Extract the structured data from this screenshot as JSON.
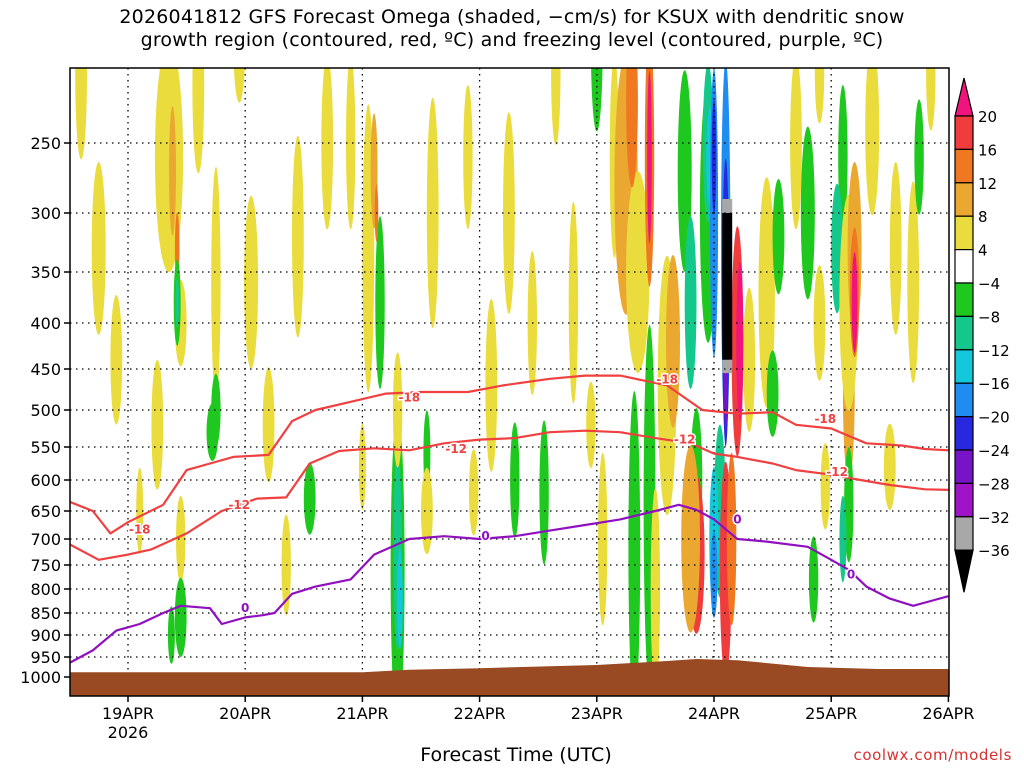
{
  "title_line1": "2026041812 GFS Forecast Omega (shaded, −cm/s) for KSUX with dendritic snow",
  "title_line2": "growth region (contoured, red, ºC) and freezing level (contoured, purple, ºC)",
  "xlabel": "Forecast Time (UTC)",
  "credit": "coolwx.com/models",
  "colors": {
    "red_contour": "#f04040",
    "purple_contour": "#9010c0",
    "ground": "#9a4a22"
  },
  "chart_data": {
    "type": "heatmap",
    "y_ticks": [
      250,
      300,
      350,
      400,
      450,
      500,
      550,
      600,
      650,
      700,
      750,
      800,
      850,
      900,
      950,
      1000
    ],
    "y_tick_labels": [
      "250",
      "300",
      "350",
      "400",
      "450",
      "500",
      "550",
      "600",
      "650",
      "700",
      "750",
      "800",
      "850",
      "900",
      "950",
      "1000"
    ],
    "x_ticks": [
      {
        "day": 1,
        "label": "19APR",
        "sub": "2026"
      },
      {
        "day": 2,
        "label": "20APR"
      },
      {
        "day": 3,
        "label": "21APR"
      },
      {
        "day": 4,
        "label": "22APR"
      },
      {
        "day": 5,
        "label": "23APR"
      },
      {
        "day": 6,
        "label": "24APR"
      },
      {
        "day": 7,
        "label": "25APR"
      },
      {
        "day": 8,
        "label": "26APR"
      }
    ],
    "xlim_days": [
      0.5,
      8.0
    ],
    "colorbar": {
      "labels": [
        "20",
        "16",
        "12",
        "8",
        "4",
        "−4",
        "−8",
        "−12",
        "−16",
        "−20",
        "−24",
        "−28",
        "−32",
        "−36"
      ],
      "colors": [
        "#f0147c",
        "#f03c3c",
        "#f07820",
        "#eaa830",
        "#eadc3c",
        "#ffffff",
        "#1ec81e",
        "#14c88c",
        "#14c8dc",
        "#1e8cf0",
        "#2828e0",
        "#7814c8",
        "#a014c8",
        "#a8a8a8",
        "#000000"
      ]
    },
    "contours": [
      {
        "label": "-18",
        "color": "red",
        "points": [
          [
            0.5,
            635
          ],
          [
            0.7,
            650
          ],
          [
            0.85,
            690
          ],
          [
            1.0,
            670
          ],
          [
            1.3,
            640
          ],
          [
            1.5,
            585
          ],
          [
            1.7,
            575
          ],
          [
            1.9,
            565
          ],
          [
            2.2,
            562
          ],
          [
            2.4,
            515
          ],
          [
            2.6,
            500
          ],
          [
            2.9,
            490
          ],
          [
            3.2,
            480
          ],
          [
            3.5,
            478
          ],
          [
            3.9,
            478
          ],
          [
            4.2,
            470
          ],
          [
            4.6,
            462
          ],
          [
            4.9,
            458
          ],
          [
            5.2,
            458
          ],
          [
            5.6,
            470
          ],
          [
            5.9,
            500
          ],
          [
            6.2,
            505
          ],
          [
            6.5,
            503
          ],
          [
            6.7,
            520
          ],
          [
            7.0,
            525
          ],
          [
            7.3,
            545
          ],
          [
            7.6,
            548
          ],
          [
            7.8,
            553
          ],
          [
            8.0,
            555
          ]
        ],
        "labels": [
          {
            "x": 1.1,
            "p": 683
          },
          {
            "x": 3.4,
            "p": 485
          },
          {
            "x": 5.6,
            "p": 463
          },
          {
            "x": 6.95,
            "p": 512
          }
        ]
      },
      {
        "label": "-12",
        "color": "red",
        "points": [
          [
            0.5,
            710
          ],
          [
            0.75,
            740
          ],
          [
            1.0,
            730
          ],
          [
            1.2,
            720
          ],
          [
            1.5,
            690
          ],
          [
            1.8,
            650
          ],
          [
            2.1,
            630
          ],
          [
            2.35,
            628
          ],
          [
            2.55,
            575
          ],
          [
            2.8,
            556
          ],
          [
            3.1,
            552
          ],
          [
            3.4,
            555
          ],
          [
            3.7,
            545
          ],
          [
            4.0,
            540
          ],
          [
            4.3,
            538
          ],
          [
            4.6,
            530
          ],
          [
            4.9,
            528
          ],
          [
            5.2,
            530
          ],
          [
            5.5,
            538
          ],
          [
            5.8,
            545
          ],
          [
            6.0,
            560
          ],
          [
            6.2,
            565
          ],
          [
            6.5,
            575
          ],
          [
            6.7,
            585
          ],
          [
            7.0,
            592
          ],
          [
            7.25,
            600
          ],
          [
            7.5,
            608
          ],
          [
            7.8,
            615
          ],
          [
            8.0,
            616
          ]
        ],
        "labels": [
          {
            "x": 1.95,
            "p": 640
          },
          {
            "x": 3.8,
            "p": 553
          },
          {
            "x": 5.75,
            "p": 540
          },
          {
            "x": 7.05,
            "p": 588
          }
        ]
      },
      {
        "label": "0",
        "color": "purple",
        "points": [
          [
            0.5,
            965
          ],
          [
            0.7,
            935
          ],
          [
            0.9,
            890
          ],
          [
            1.1,
            875
          ],
          [
            1.3,
            850
          ],
          [
            1.45,
            835
          ],
          [
            1.7,
            840
          ],
          [
            1.8,
            875
          ],
          [
            2.0,
            860
          ],
          [
            2.15,
            855
          ],
          [
            2.25,
            850
          ],
          [
            2.4,
            810
          ],
          [
            2.6,
            795
          ],
          [
            2.9,
            780
          ],
          [
            3.1,
            730
          ],
          [
            3.4,
            700
          ],
          [
            3.7,
            695
          ],
          [
            4.0,
            700
          ],
          [
            4.3,
            695
          ],
          [
            4.6,
            685
          ],
          [
            4.9,
            675
          ],
          [
            5.2,
            665
          ],
          [
            5.5,
            650
          ],
          [
            5.7,
            640
          ],
          [
            5.85,
            648
          ],
          [
            6.0,
            665
          ],
          [
            6.2,
            700
          ],
          [
            6.45,
            705
          ],
          [
            6.8,
            715
          ],
          [
            7.0,
            740
          ],
          [
            7.15,
            760
          ],
          [
            7.3,
            795
          ],
          [
            7.5,
            820
          ],
          [
            7.7,
            835
          ],
          [
            7.85,
            825
          ],
          [
            8.0,
            815
          ]
        ],
        "labels": [
          {
            "x": 2.0,
            "p": 840
          },
          {
            "x": 4.05,
            "p": 695
          },
          {
            "x": 6.2,
            "p": 665
          },
          {
            "x": 7.17,
            "p": 770
          }
        ]
      }
    ]
  }
}
